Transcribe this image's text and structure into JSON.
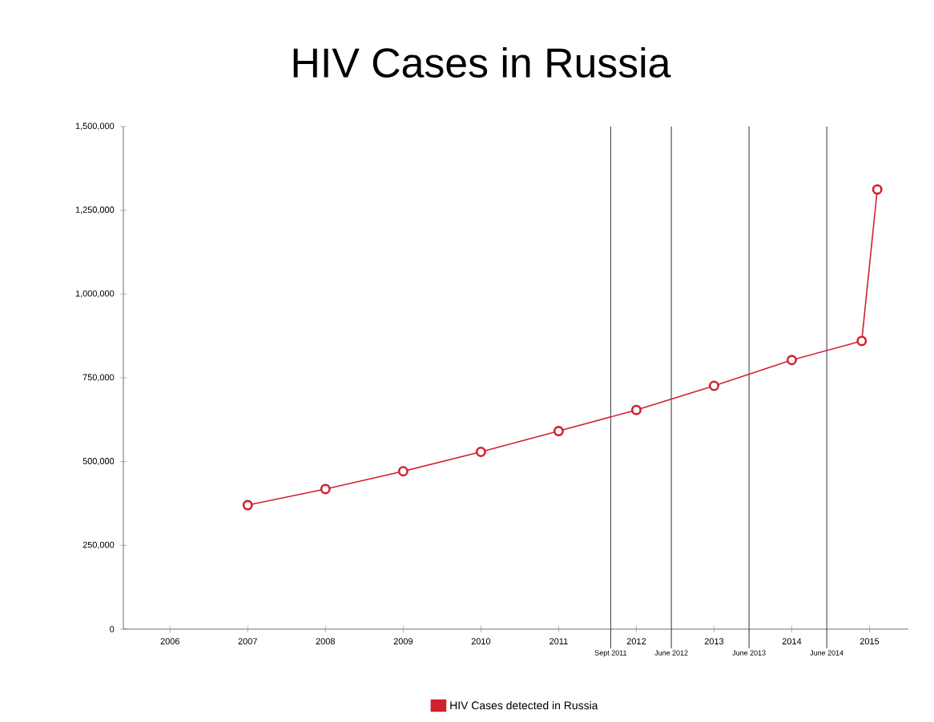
{
  "chart_data": {
    "type": "line",
    "title": "HIV Cases in Russia",
    "x": [
      2007,
      2008,
      2009,
      2010,
      2011,
      2012,
      2013,
      2014,
      2014.9,
      2015.1
    ],
    "series": [
      {
        "name": "HIV Cases detected in Russia",
        "color": "#d0202f",
        "values": [
          370000,
          418000,
          471000,
          529000,
          591000,
          654000,
          726000,
          803000,
          860000,
          1312000
        ]
      }
    ],
    "xlim": [
      2005.4,
      2015.5
    ],
    "xticks": [
      2006,
      2007,
      2008,
      2009,
      2010,
      2011,
      2012,
      2013,
      2014,
      2015
    ],
    "ylim": [
      0,
      1500000
    ],
    "yticks": [
      0,
      {
        "value": 250000,
        "label": "250,000"
      },
      {
        "value": 500000,
        "label": "500,000"
      },
      {
        "value": 750000,
        "label": "750,000"
      },
      {
        "value": 1000000,
        "label": "1,000,000"
      },
      {
        "value": 1250000,
        "label": "1,250,000"
      },
      {
        "value": 1500000,
        "label": "1,500,000"
      }
    ],
    "ref_lines": [
      {
        "axis": "x",
        "value": 2011.67,
        "label": "Sept 2011",
        "color": "#333333"
      },
      {
        "axis": "x",
        "value": 2012.45,
        "label": "June 2012",
        "color": "#333333"
      },
      {
        "axis": "x",
        "value": 2013.45,
        "label": "June 2013",
        "color": "#333333"
      },
      {
        "axis": "x",
        "value": 2014.45,
        "label": "June 2014",
        "color": "#333333"
      }
    ],
    "marker": "circle",
    "line_style": "solid",
    "grid": false,
    "legend": "bottom"
  }
}
